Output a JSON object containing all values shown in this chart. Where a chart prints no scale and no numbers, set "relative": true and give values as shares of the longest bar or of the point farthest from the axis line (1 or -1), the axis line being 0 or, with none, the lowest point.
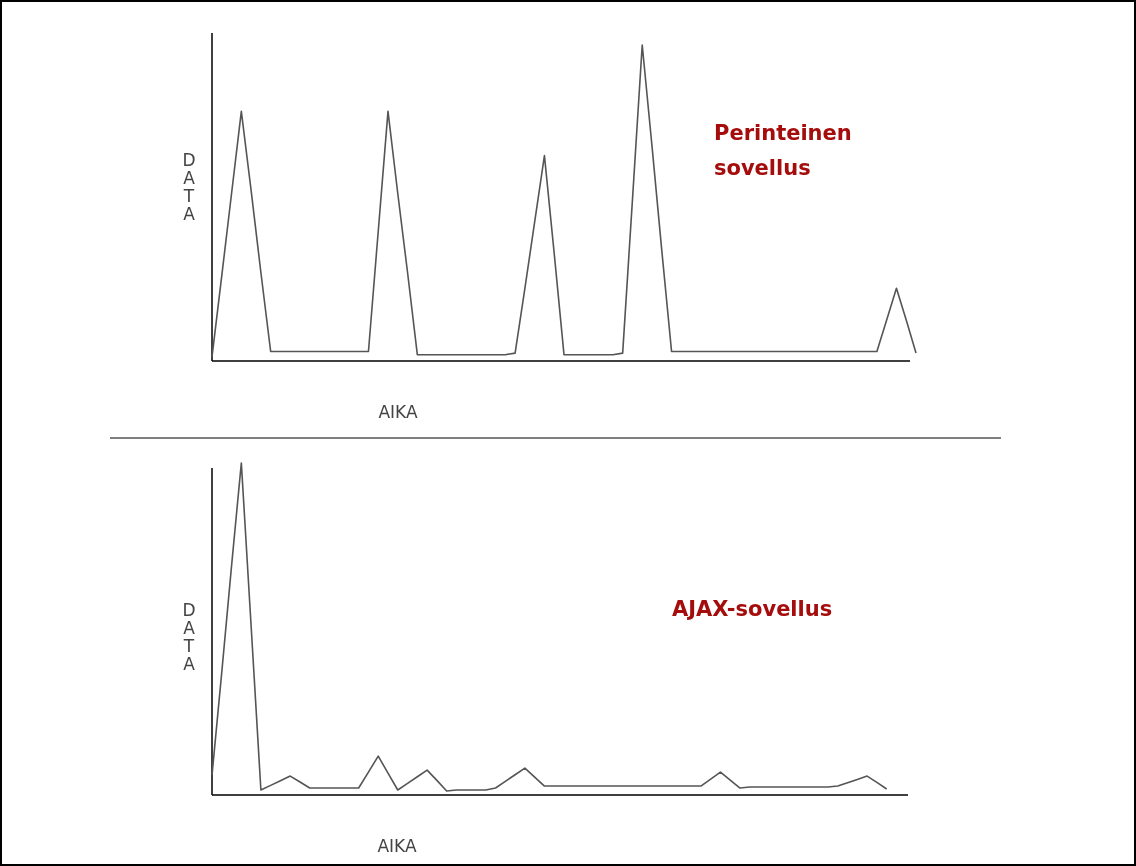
{
  "chart_data": [
    {
      "type": "line",
      "relative": true,
      "xlabel": "AIKA",
      "ylabel": "DATA",
      "annotations": [
        "Perinteinen sovellus"
      ],
      "categories": [
        null,
        null,
        null,
        null,
        null,
        null,
        null,
        null,
        null,
        null,
        null,
        null,
        null,
        null,
        null,
        null,
        null,
        null,
        null,
        null,
        null,
        null,
        null,
        null,
        null,
        null,
        null,
        null,
        null,
        null,
        null,
        null,
        null,
        null,
        null,
        null,
        null,
        null,
        null,
        null,
        null,
        null,
        null,
        null,
        null,
        null,
        null,
        null,
        null,
        null,
        null,
        null,
        null,
        null,
        null,
        null,
        null,
        null,
        null,
        null,
        null,
        null,
        null,
        null,
        null,
        null,
        null,
        null,
        null,
        null,
        null,
        null,
        null
      ],
      "series": [
        {
          "color": "#555555",
          "values": [
            0.013,
            0.27,
            0.53,
            0.79,
            0.54,
            0.28,
            0.03,
            0.03,
            0.03,
            0.03,
            0.03,
            0.03,
            0.03,
            0.03,
            0.03,
            0.03,
            0.03,
            0.41,
            0.79,
            0.53,
            0.28,
            0.02,
            0.02,
            0.02,
            0.02,
            0.02,
            0.02,
            0.02,
            0.02,
            0.02,
            0.02,
            0.025,
            0.23,
            0.44,
            0.65,
            0.34,
            0.02,
            0.02,
            0.02,
            0.02,
            0.02,
            0.02,
            0.025,
            0.51,
            1,
            0.68,
            0.35,
            0.03,
            0.03,
            0.03,
            0.03,
            0.03,
            0.03,
            0.03,
            0.03,
            0.03,
            0.03,
            0.03,
            0.03,
            0.03,
            0.03,
            0.03,
            0.03,
            0.03,
            0.03,
            0.03,
            0.03,
            0.03,
            0.03,
            0.13,
            0.23,
            0.13,
            0.025
          ]
        }
      ]
    },
    {
      "type": "line",
      "relative": true,
      "xlabel": "AIKA",
      "ylabel": "DATA",
      "annotations": [
        "AJAX-sovellus"
      ],
      "categories": [
        null,
        null,
        null,
        null,
        null,
        null,
        null,
        null,
        null,
        null,
        null,
        null,
        null,
        null,
        null,
        null,
        null,
        null,
        null,
        null,
        null,
        null,
        null,
        null,
        null,
        null,
        null,
        null,
        null,
        null,
        null,
        null,
        null,
        null,
        null,
        null,
        null,
        null,
        null,
        null,
        null,
        null,
        null,
        null,
        null,
        null,
        null,
        null,
        null,
        null,
        null,
        null,
        null,
        null,
        null,
        null,
        null,
        null,
        null,
        null,
        null,
        null,
        null,
        null,
        null,
        null,
        null,
        null,
        null,
        null,
        null,
        null,
        null
      ],
      "series": [
        {
          "color": "#555555",
          "values": [
            0.06,
            0.37,
            0.69,
            1,
            0.51,
            0.015,
            0.029,
            0.043,
            0.057,
            0.039,
            0.021,
            0.021,
            0.021,
            0.021,
            0.021,
            0.021,
            0.069,
            0.117,
            0.066,
            0.015,
            0.035,
            0.055,
            0.075,
            0.044,
            0.012,
            0.015,
            0.015,
            0.015,
            0.015,
            0.021,
            0.041,
            0.061,
            0.081,
            0.054,
            0.027,
            0.027,
            0.027,
            0.027,
            0.027,
            0.027,
            0.027,
            0.027,
            0.027,
            0.027,
            0.027,
            0.027,
            0.027,
            0.027,
            0.027,
            0.027,
            0.027,
            0.048,
            0.069,
            0.045,
            0.021,
            0.024,
            0.024,
            0.024,
            0.024,
            0.024,
            0.024,
            0.024,
            0.024,
            0.024,
            0.027,
            0.037,
            0.047,
            0.057,
            0.038,
            0.018,
            null,
            null,
            null
          ]
        }
      ]
    }
  ]
}
